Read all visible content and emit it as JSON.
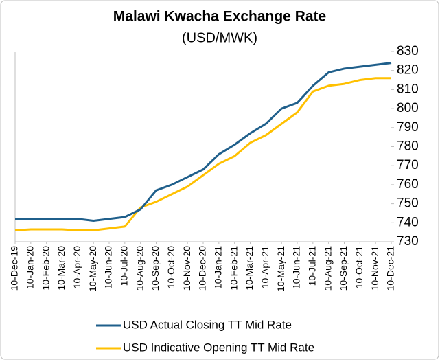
{
  "chart_data": {
    "type": "line",
    "title": "Malawi Kwacha Exchange Rate",
    "subtitle": "(USD/MWK)",
    "categories": [
      "10-Dec-19",
      "10-Jan-20",
      "10-Feb-20",
      "10-Mar-20",
      "10-Apr-20",
      "10-May-20",
      "10-Jun-20",
      "10-Jul-20",
      "10-Aug-20",
      "10-Sep-20",
      "10-Oct-20",
      "10-Nov-20",
      "10-Dec-20",
      "10-Jan-21",
      "10-Feb-21",
      "10-Mar-21",
      "10-Apr-21",
      "10-May-21",
      "10-Jun-21",
      "10-Jul-21",
      "10-Aug-21",
      "10-Sep-21",
      "10-Oct-21",
      "10-Nov-21",
      "10-Dec-21"
    ],
    "series": [
      {
        "name": "USD Actual Closing TT Mid Rate",
        "color": "#1f5f8b",
        "values": [
          742,
          742,
          742,
          742,
          742,
          741,
          742,
          743,
          747,
          757,
          760,
          764,
          768,
          776,
          781,
          787,
          792,
          800,
          803,
          812,
          819,
          821,
          822,
          823,
          824
        ]
      },
      {
        "name": "USD Indicative Opening TT Mid Rate",
        "color": "#ffc000",
        "values": [
          736,
          736.5,
          736.5,
          736.5,
          736,
          736,
          737,
          738,
          748,
          751,
          755,
          759,
          765,
          771,
          775,
          782,
          786,
          792,
          798,
          809,
          812,
          813,
          815,
          816,
          816
        ]
      }
    ],
    "ylim": [
      730,
      830
    ],
    "yticks": [
      730,
      740,
      750,
      760,
      770,
      780,
      790,
      800,
      810,
      820,
      830
    ],
    "grid": false,
    "legend": "bottom"
  }
}
